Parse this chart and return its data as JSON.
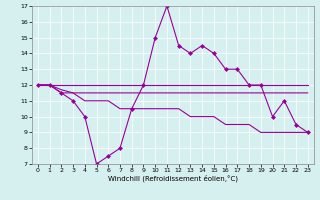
{
  "xlabel": "Windchill (Refroidissement éolien,°C)",
  "background_color": "#d6f0f0",
  "line_color": "#990099",
  "xlim": [
    -0.5,
    23.5
  ],
  "ylim": [
    7,
    17
  ],
  "yticks": [
    7,
    8,
    9,
    10,
    11,
    12,
    13,
    14,
    15,
    16,
    17
  ],
  "xticks": [
    0,
    1,
    2,
    3,
    4,
    5,
    6,
    7,
    8,
    9,
    10,
    11,
    12,
    13,
    14,
    15,
    16,
    17,
    18,
    19,
    20,
    21,
    22,
    23
  ],
  "series": [
    {
      "x": [
        0,
        1,
        2,
        3,
        4,
        5,
        6,
        7,
        8,
        9,
        10,
        11,
        12,
        13,
        14,
        15,
        16,
        17,
        18,
        19,
        20,
        21,
        22,
        23
      ],
      "y": [
        12,
        12,
        11.5,
        11,
        10,
        7,
        7.5,
        8,
        10.5,
        12,
        15,
        17,
        14.5,
        14,
        14.5,
        14,
        13,
        13,
        12,
        12,
        10,
        11,
        9.5,
        9
      ],
      "marker": true
    },
    {
      "x": [
        0,
        1,
        2,
        3,
        4,
        5,
        6,
        7,
        8,
        9,
        10,
        11,
        12,
        13,
        14,
        15,
        16,
        17,
        18,
        19,
        20,
        21,
        22,
        23
      ],
      "y": [
        12,
        12,
        11.7,
        11.5,
        11.5,
        11.5,
        11.5,
        11.5,
        11.5,
        11.5,
        11.5,
        11.5,
        11.5,
        11.5,
        11.5,
        11.5,
        11.5,
        11.5,
        11.5,
        11.5,
        11.5,
        11.5,
        11.5,
        11.5
      ],
      "marker": false
    },
    {
      "x": [
        0,
        1,
        2,
        3,
        4,
        5,
        6,
        7,
        8,
        9,
        10,
        11,
        12,
        13,
        14,
        15,
        16,
        17,
        18,
        19,
        20,
        21,
        22,
        23
      ],
      "y": [
        12,
        12,
        12,
        12,
        12,
        12,
        12,
        12,
        12,
        12,
        12,
        12,
        12,
        12,
        12,
        12,
        12,
        12,
        12,
        12,
        12,
        12,
        12,
        12
      ],
      "marker": false
    },
    {
      "x": [
        0,
        1,
        2,
        3,
        4,
        5,
        6,
        7,
        8,
        9,
        10,
        11,
        12,
        13,
        14,
        15,
        16,
        17,
        18,
        19,
        20,
        21,
        22,
        23
      ],
      "y": [
        12,
        12,
        11.5,
        11.5,
        11,
        11,
        11,
        10.5,
        10.5,
        10.5,
        10.5,
        10.5,
        10.5,
        10,
        10,
        10,
        9.5,
        9.5,
        9.5,
        9,
        9,
        9,
        9,
        9
      ],
      "marker": false
    }
  ]
}
